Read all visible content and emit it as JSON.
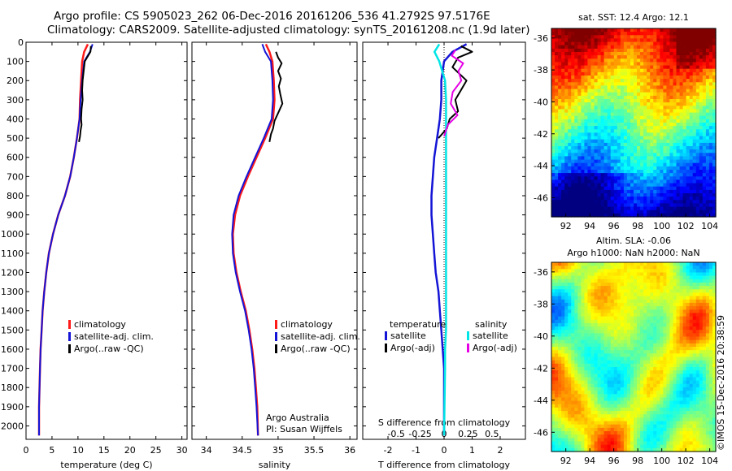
{
  "header": {
    "line1": "Argo profile: CS 5905023_262 06-Dec-2016 20161206_536 41.2792S 97.5176E",
    "line2": "Climatology: CARS2009. Satellite-adjusted climatology: synTS_20161208.nc (1.9d later)"
  },
  "footer_label": "©IMOS 15-Dec-2016 20:38:59",
  "colors": {
    "climatology": "#ff1a1a",
    "satellite": "#1414d6",
    "argo": "#000000",
    "sat_sal": "#00e5e5",
    "argo_sal": "#e600e6"
  },
  "chart_data": [
    {
      "type": "line",
      "id": "temperature",
      "xlabel": "temperature (deg C)",
      "ylabel": "",
      "xlim": [
        0,
        31
      ],
      "ylim": [
        2070,
        0
      ],
      "xticks": [
        "0",
        "5",
        "10",
        "15",
        "20",
        "25",
        "30"
      ],
      "yticks": [
        "0",
        "100",
        "200",
        "300",
        "400",
        "500",
        "600",
        "700",
        "800",
        "900",
        "1000",
        "1100",
        "1200",
        "1300",
        "1400",
        "1500",
        "1600",
        "1700",
        "1800",
        "1900",
        "2000"
      ],
      "legend": [
        "climatology",
        "satellite-adj. clim.",
        "Argo(..raw -QC)"
      ],
      "series": [
        {
          "name": "climatology",
          "x": [
            11.9,
            11.2,
            10.8,
            10.6,
            10.4,
            10.3,
            9.8,
            9.2,
            8.5,
            7.5,
            6.2,
            5.2,
            4.4,
            3.9,
            3.5,
            3.2,
            3.0,
            2.8,
            2.7,
            2.6,
            2.5,
            2.5
          ],
          "y": [
            10,
            50,
            100,
            200,
            300,
            400,
            500,
            600,
            700,
            800,
            900,
            1000,
            1100,
            1200,
            1300,
            1400,
            1500,
            1600,
            1700,
            1800,
            1900,
            2050
          ]
        },
        {
          "name": "satellite-adj. clim.",
          "x": [
            12.8,
            12.3,
            11.2,
            10.8,
            10.5,
            10.3,
            9.8,
            9.2,
            8.5,
            7.5,
            6.2,
            5.2,
            4.4,
            3.9,
            3.5,
            3.2,
            3.0,
            2.8,
            2.7,
            2.6,
            2.5,
            2.5
          ],
          "y": [
            10,
            50,
            100,
            200,
            300,
            400,
            500,
            600,
            700,
            800,
            900,
            1000,
            1100,
            1200,
            1300,
            1400,
            1500,
            1600,
            1700,
            1800,
            1900,
            2050
          ]
        },
        {
          "name": "Argo(..raw -QC)",
          "x": [
            12.5,
            12.4,
            11.3,
            11.1,
            10.9,
            10.8,
            10.9,
            10.7,
            10.6,
            10.7,
            10.5,
            10.4,
            10.2
          ],
          "y": [
            20,
            50,
            100,
            150,
            200,
            250,
            300,
            350,
            400,
            430,
            460,
            490,
            520
          ]
        }
      ]
    },
    {
      "type": "line",
      "id": "salinity",
      "xlabel": "salinity",
      "xlim": [
        33.8,
        36.1
      ],
      "ylim": [
        2070,
        0
      ],
      "xticks": [
        "34",
        "34.5",
        "35",
        "35.5",
        "36"
      ],
      "legend": [
        "climatology",
        "satellite-adj. clim.",
        "Argo(..raw -QC)"
      ],
      "annotation": [
        "Argo Australia",
        "PI: Susan Wijffels"
      ],
      "series": [
        {
          "name": "climatology",
          "x": [
            34.83,
            34.88,
            34.92,
            34.94,
            34.95,
            34.93,
            34.82,
            34.7,
            34.58,
            34.47,
            34.4,
            34.37,
            34.38,
            34.42,
            34.48,
            34.55,
            34.6,
            34.64,
            34.67,
            34.69,
            34.71,
            34.72
          ],
          "y": [
            10,
            50,
            100,
            200,
            300,
            400,
            500,
            600,
            700,
            800,
            900,
            1000,
            1100,
            1200,
            1300,
            1400,
            1500,
            1600,
            1700,
            1800,
            1900,
            2050
          ]
        },
        {
          "name": "satellite-adj. clim.",
          "x": [
            34.78,
            34.82,
            34.9,
            34.92,
            34.93,
            34.91,
            34.8,
            34.68,
            34.56,
            34.45,
            34.38,
            34.36,
            34.37,
            34.41,
            34.47,
            34.54,
            34.59,
            34.63,
            34.66,
            34.68,
            34.7,
            34.72
          ],
          "y": [
            10,
            50,
            100,
            200,
            300,
            400,
            500,
            600,
            700,
            800,
            900,
            1000,
            1100,
            1200,
            1300,
            1400,
            1500,
            1600,
            1700,
            1800,
            1900,
            2050
          ]
        },
        {
          "name": "Argo(..raw -QC)",
          "x": [
            34.97,
            35.0,
            35.05,
            35.0,
            35.04,
            35.01,
            35.03,
            35.06,
            35.0,
            34.95,
            34.93,
            34.9,
            34.88
          ],
          "y": [
            50,
            80,
            110,
            150,
            190,
            230,
            270,
            320,
            370,
            410,
            450,
            480,
            520
          ]
        }
      ]
    },
    {
      "type": "line",
      "id": "difference",
      "xlabel": "T difference from climatology",
      "xlabel_top": "S difference from climatology",
      "xlim": [
        -2.9,
        2.9
      ],
      "xlim_top": [
        -0.85,
        0.85
      ],
      "ylim": [
        2070,
        0
      ],
      "xticks": [
        "-2",
        "-1",
        "0",
        "1",
        "2"
      ],
      "xticks_top": [
        "-0.5",
        "-0.25",
        "0",
        "0.25",
        "0.5"
      ],
      "legend_headers": [
        "temperature",
        "salinity"
      ],
      "legend_temperature": [
        "satellite",
        "Argo(-adj)"
      ],
      "legend_salinity": [
        "satellite",
        "Argo(-adj)"
      ],
      "series": [
        {
          "name": "temperature satellite",
          "x": [
            0.8,
            0.3,
            0.0,
            -0.1,
            -0.1,
            -0.15,
            -0.25,
            -0.35,
            -0.4,
            -0.45,
            -0.45,
            -0.4,
            -0.35,
            -0.3,
            -0.2,
            -0.15,
            -0.1,
            -0.05,
            0,
            0,
            0,
            0
          ],
          "y": [
            10,
            50,
            100,
            200,
            300,
            400,
            500,
            600,
            700,
            800,
            900,
            1000,
            1100,
            1200,
            1300,
            1400,
            1500,
            1600,
            1700,
            1800,
            1900,
            2050
          ]
        },
        {
          "name": "temperature Argo(-adj)",
          "x": [
            0.6,
            1.0,
            0.5,
            0.3,
            0.8,
            0.6,
            0.4,
            0.5,
            0.2,
            0.1,
            -0.2
          ],
          "y": [
            20,
            50,
            80,
            130,
            200,
            250,
            300,
            360,
            400,
            450,
            500
          ]
        },
        {
          "name": "salinity satellite",
          "x": [
            -0.05,
            -0.1,
            -0.05,
            0.01,
            0.02,
            0.02,
            0.02,
            0.02,
            0.02,
            0.02,
            0.02,
            0.02,
            0.02,
            0.02,
            0.02,
            0.02,
            0.02,
            0.01,
            0.01,
            0.0
          ],
          "y": [
            10,
            50,
            100,
            200,
            300,
            400,
            500,
            600,
            700,
            800,
            900,
            1000,
            1100,
            1200,
            1300,
            1400,
            1500,
            1600,
            1700,
            2050
          ]
        },
        {
          "name": "salinity Argo(-adj)",
          "x": [
            0.12,
            0.08,
            0.2,
            0.15,
            0.18,
            0.09,
            0.07,
            0.14,
            0.04,
            0.0
          ],
          "y": [
            40,
            70,
            110,
            150,
            200,
            260,
            320,
            380,
            430,
            490
          ]
        }
      ]
    },
    {
      "type": "heatmap",
      "id": "sst_map",
      "title": "sat. SST: 12.4  Argo: 12.1",
      "xticks": [
        "92",
        "94",
        "96",
        "98",
        "100",
        "102",
        "104"
      ],
      "yticks": [
        "-36",
        "-38",
        "-40",
        "-42",
        "-44",
        "-46"
      ],
      "xlim": [
        90.8,
        104.5
      ],
      "ylim": [
        -47.2,
        -35.4
      ]
    },
    {
      "type": "heatmap",
      "id": "sla_map",
      "title": "Altim. SLA: -0.06",
      "subtitle": "Argo h1000: NaN h2000: NaN",
      "xticks": [
        "92",
        "94",
        "96",
        "98",
        "100",
        "102",
        "104"
      ],
      "yticks": [
        "-36",
        "-38",
        "-40",
        "-42",
        "-44",
        "-46"
      ],
      "xlim": [
        90.8,
        104.5
      ],
      "ylim": [
        -47.2,
        -35.4
      ]
    }
  ]
}
